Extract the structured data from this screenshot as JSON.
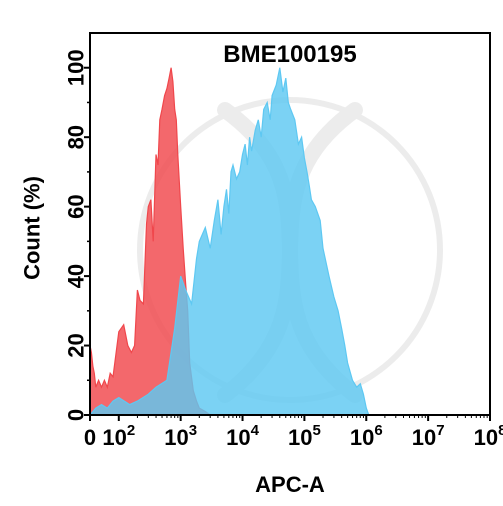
{
  "chart_data": {
    "type": "area",
    "title": "BME100195",
    "xlabel": "APC-A",
    "ylabel": "Count (%)",
    "x_scale": "biexponential-log",
    "xlim": [
      0,
      100000000
    ],
    "ylim": [
      0,
      110
    ],
    "x_ticks": [
      {
        "value": 0,
        "base": "0",
        "exp": ""
      },
      {
        "value": 100,
        "base": "10",
        "exp": "2"
      },
      {
        "value": 1000,
        "base": "10",
        "exp": "3"
      },
      {
        "value": 10000,
        "base": "10",
        "exp": "4"
      },
      {
        "value": 100000,
        "base": "10",
        "exp": "5"
      },
      {
        "value": 1000000,
        "base": "10",
        "exp": "6"
      },
      {
        "value": 10000000,
        "base": "10",
        "exp": "7"
      },
      {
        "value": 100000000,
        "base": "10",
        "exp": "8"
      }
    ],
    "y_ticks": [
      0,
      20,
      40,
      60,
      80,
      100
    ],
    "grid": false,
    "legend": "none",
    "series": [
      {
        "color": "#f0474c",
        "x": [
          0,
          5,
          10,
          15,
          20,
          30,
          40,
          50,
          60,
          70,
          80,
          100,
          120,
          140,
          160,
          180,
          200,
          220,
          250,
          280,
          300,
          330,
          360,
          400,
          430,
          460,
          500,
          550,
          600,
          650,
          700,
          750,
          800,
          850,
          900,
          1000,
          1100,
          1200,
          1300,
          1400,
          1600,
          1800,
          2000,
          2500,
          3000,
          3300
        ],
        "values": [
          20,
          18,
          14,
          12,
          8,
          10,
          8,
          10,
          8,
          12,
          11,
          24,
          26,
          20,
          18,
          20,
          36,
          33,
          32,
          55,
          60,
          62,
          50,
          75,
          72,
          85,
          88,
          92,
          94,
          97,
          100,
          96,
          88,
          85,
          75,
          60,
          48,
          38,
          30,
          15,
          7,
          4,
          2,
          1,
          0,
          0
        ]
      },
      {
        "color": "#5ec8f2",
        "x": [
          0,
          20,
          40,
          60,
          80,
          100,
          150,
          200,
          300,
          400,
          600,
          800,
          1000,
          1200,
          1500,
          1800,
          2000,
          2500,
          3000,
          3500,
          4000,
          4500,
          5000,
          5500,
          6000,
          6500,
          7000,
          8000,
          9000,
          10000,
          11000,
          12000,
          13000,
          14000,
          16000,
          18000,
          20000,
          22000,
          25000,
          28000,
          30000,
          35000,
          40000,
          45000,
          50000,
          55000,
          60000,
          70000,
          80000,
          90000,
          100000,
          110000,
          120000,
          130000,
          150000,
          180000,
          200000,
          250000,
          300000,
          350000,
          400000,
          450000,
          500000,
          600000,
          700000,
          800000,
          900000,
          1000000,
          1100000
        ],
        "values": [
          0,
          2,
          3,
          2,
          4,
          5,
          3,
          4,
          6,
          8,
          10,
          25,
          40,
          36,
          32,
          45,
          50,
          54,
          48,
          56,
          62,
          52,
          60,
          65,
          58,
          70,
          72,
          68,
          70,
          75,
          78,
          72,
          80,
          76,
          82,
          85,
          80,
          88,
          90,
          85,
          92,
          95,
          100,
          93,
          97,
          90,
          88,
          85,
          78,
          80,
          74,
          70,
          66,
          62,
          60,
          56,
          48,
          40,
          34,
          30,
          25,
          20,
          15,
          10,
          8,
          9,
          6,
          2,
          0
        ]
      }
    ]
  }
}
